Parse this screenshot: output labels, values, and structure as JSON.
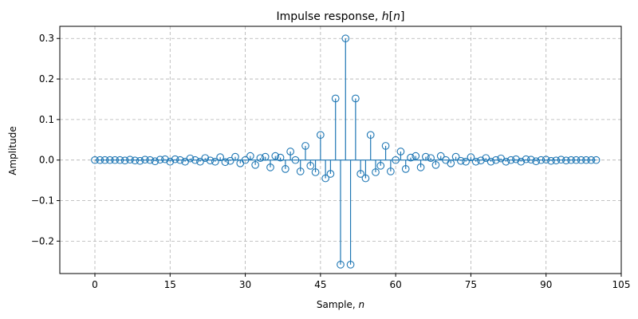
{
  "chart_data": {
    "type": "stem",
    "title_prefix": "Impulse response, ",
    "title_var": "h",
    "title_open": "[",
    "title_index": "n",
    "title_close": "]",
    "xlabel_prefix": "Sample, ",
    "xlabel_var": "n",
    "ylabel": "Amplitude",
    "xlim": [
      -7,
      105
    ],
    "ylim": [
      -0.28,
      0.33
    ],
    "xticks": [
      0,
      15,
      30,
      45,
      60,
      75,
      90,
      105
    ],
    "xtick_labels": [
      "0",
      "15",
      "30",
      "45",
      "60",
      "75",
      "90",
      "105"
    ],
    "yticks": [
      -0.2,
      -0.1,
      0.0,
      0.1,
      0.2,
      0.3
    ],
    "ytick_labels": [
      "−0.2",
      "−0.1",
      "0.0",
      "0.1",
      "0.2",
      "0.3"
    ],
    "grid": true,
    "color": "#1f77b4",
    "baseline_color": "#1f77b4",
    "grid_color": "#b0b0b0",
    "x": [
      0,
      1,
      2,
      3,
      4,
      5,
      6,
      7,
      8,
      9,
      10,
      11,
      12,
      13,
      14,
      15,
      16,
      17,
      18,
      19,
      20,
      21,
      22,
      23,
      24,
      25,
      26,
      27,
      28,
      29,
      30,
      31,
      32,
      33,
      34,
      35,
      36,
      37,
      38,
      39,
      40,
      41,
      42,
      43,
      44,
      45,
      46,
      47,
      48,
      49,
      50,
      51,
      52,
      53,
      54,
      55,
      56,
      57,
      58,
      59,
      60,
      61,
      62,
      63,
      64,
      65,
      66,
      67,
      68,
      69,
      70,
      71,
      72,
      73,
      74,
      75,
      76,
      77,
      78,
      79,
      80,
      81,
      82,
      83,
      84,
      85,
      86,
      87,
      88,
      89,
      90,
      91,
      92,
      93,
      94,
      95,
      96,
      97,
      98,
      99,
      100
    ],
    "values": [
      0.0,
      0.0,
      0.0,
      0.0,
      0.0,
      0.0,
      -0.001,
      0.001,
      -0.001,
      -0.002,
      0.001,
      0.0,
      -0.003,
      0.001,
      0.002,
      -0.004,
      0.002,
      0.0,
      -0.004,
      0.004,
      0.0,
      -0.004,
      0.005,
      -0.001,
      -0.004,
      0.007,
      -0.005,
      -0.002,
      0.008,
      -0.008,
      0.0,
      0.01,
      -0.012,
      0.005,
      0.008,
      -0.018,
      0.01,
      0.006,
      -0.022,
      0.021,
      0.0,
      -0.028,
      0.035,
      -0.014,
      -0.03,
      0.062,
      -0.045,
      -0.034,
      0.152,
      -0.258,
      0.3,
      -0.258,
      0.152,
      -0.034,
      -0.045,
      0.062,
      -0.03,
      -0.014,
      0.035,
      -0.028,
      0.0,
      0.021,
      -0.022,
      0.006,
      0.01,
      -0.018,
      0.008,
      0.005,
      -0.012,
      0.01,
      0.0,
      -0.008,
      0.008,
      -0.002,
      -0.004,
      0.007,
      -0.004,
      -0.001,
      0.005,
      -0.004,
      0.0,
      0.004,
      -0.004,
      0.0,
      0.002,
      -0.004,
      0.002,
      0.001,
      -0.003,
      0.0,
      0.001,
      -0.002,
      -0.001,
      0.001,
      -0.001,
      0.0,
      0.0,
      0.0,
      0.0,
      0.0,
      0.0
    ]
  }
}
